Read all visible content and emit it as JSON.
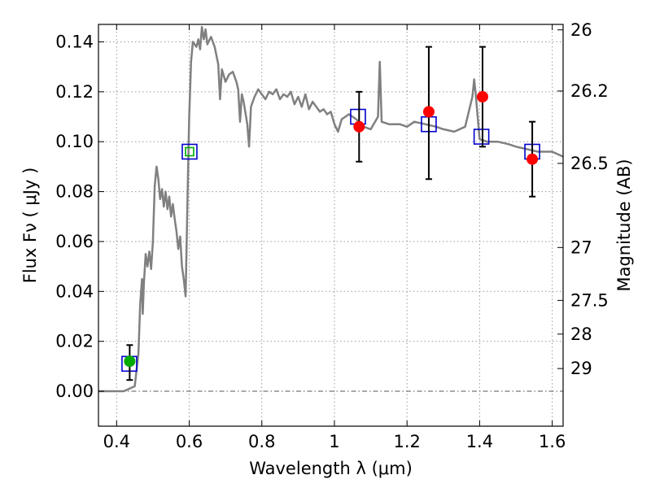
{
  "chart_data": {
    "type": "scatter",
    "xlabel": "Wavelength  λ (μm)",
    "ylabel": "Flux  Fν  ( μJy )",
    "ylabel_right": "Magnitude (AB)",
    "xlim": [
      0.35,
      1.63
    ],
    "ylim": [
      -0.014,
      0.147
    ],
    "grid": true,
    "x_ticks": [
      {
        "value": 0.4,
        "label": "0.4"
      },
      {
        "value": 0.6,
        "label": "0.6"
      },
      {
        "value": 0.8,
        "label": "0.8"
      },
      {
        "value": 1.0,
        "label": "1"
      },
      {
        "value": 1.2,
        "label": "1.2"
      },
      {
        "value": 1.4,
        "label": "1.4"
      },
      {
        "value": 1.6,
        "label": "1.6"
      }
    ],
    "y_ticks": [
      {
        "value": 0.0,
        "label": "0.00"
      },
      {
        "value": 0.02,
        "label": "0.02"
      },
      {
        "value": 0.04,
        "label": "0.04"
      },
      {
        "value": 0.06,
        "label": "0.06"
      },
      {
        "value": 0.08,
        "label": "0.08"
      },
      {
        "value": 0.1,
        "label": "0.10"
      },
      {
        "value": 0.12,
        "label": "0.12"
      },
      {
        "value": 0.14,
        "label": "0.14"
      }
    ],
    "right_ticks": [
      {
        "flux": 0.1448,
        "label": "26"
      },
      {
        "flux": 0.1203,
        "label": "26.2"
      },
      {
        "flux": 0.0913,
        "label": "26.5"
      },
      {
        "flux": 0.0576,
        "label": "27"
      },
      {
        "flux": 0.0364,
        "label": "27.5"
      },
      {
        "flux": 0.0229,
        "label": "28"
      },
      {
        "flux": 0.0091,
        "label": "29"
      }
    ],
    "series": [
      {
        "kind": "model-sed",
        "color": "#808080",
        "points": [
          [
            0.35,
            0.0
          ],
          [
            0.42,
            0.0
          ],
          [
            0.45,
            0.002
          ],
          [
            0.46,
            0.015
          ],
          [
            0.465,
            0.035
          ],
          [
            0.47,
            0.045
          ],
          [
            0.472,
            0.031
          ],
          [
            0.475,
            0.043
          ],
          [
            0.48,
            0.055
          ],
          [
            0.485,
            0.05
          ],
          [
            0.49,
            0.056
          ],
          [
            0.495,
            0.049
          ],
          [
            0.5,
            0.06
          ],
          [
            0.505,
            0.082
          ],
          [
            0.51,
            0.09
          ],
          [
            0.515,
            0.085
          ],
          [
            0.52,
            0.077
          ],
          [
            0.525,
            0.081
          ],
          [
            0.53,
            0.074
          ],
          [
            0.535,
            0.08
          ],
          [
            0.54,
            0.073
          ],
          [
            0.545,
            0.078
          ],
          [
            0.55,
            0.07
          ],
          [
            0.555,
            0.075
          ],
          [
            0.56,
            0.069
          ],
          [
            0.565,
            0.064
          ],
          [
            0.57,
            0.057
          ],
          [
            0.575,
            0.062
          ],
          [
            0.58,
            0.05
          ],
          [
            0.585,
            0.045
          ],
          [
            0.59,
            0.038
          ],
          [
            0.595,
            0.075
          ],
          [
            0.6,
            0.11
          ],
          [
            0.605,
            0.132
          ],
          [
            0.61,
            0.14
          ],
          [
            0.62,
            0.138
          ],
          [
            0.625,
            0.141
          ],
          [
            0.63,
            0.137
          ],
          [
            0.635,
            0.146
          ],
          [
            0.64,
            0.141
          ],
          [
            0.645,
            0.145
          ],
          [
            0.65,
            0.139
          ],
          [
            0.66,
            0.142
          ],
          [
            0.67,
            0.138
          ],
          [
            0.68,
            0.131
          ],
          [
            0.685,
            0.117
          ],
          [
            0.69,
            0.129
          ],
          [
            0.7,
            0.124
          ],
          [
            0.71,
            0.127
          ],
          [
            0.72,
            0.128
          ],
          [
            0.73,
            0.124
          ],
          [
            0.735,
            0.121
          ],
          [
            0.74,
            0.108
          ],
          [
            0.745,
            0.119
          ],
          [
            0.75,
            0.116
          ],
          [
            0.76,
            0.107
          ],
          [
            0.765,
            0.098
          ],
          [
            0.77,
            0.114
          ],
          [
            0.78,
            0.118
          ],
          [
            0.79,
            0.121
          ],
          [
            0.8,
            0.119
          ],
          [
            0.81,
            0.117
          ],
          [
            0.82,
            0.12
          ],
          [
            0.83,
            0.119
          ],
          [
            0.84,
            0.121
          ],
          [
            0.85,
            0.117
          ],
          [
            0.86,
            0.119
          ],
          [
            0.87,
            0.118
          ],
          [
            0.88,
            0.12
          ],
          [
            0.89,
            0.115
          ],
          [
            0.9,
            0.118
          ],
          [
            0.91,
            0.114
          ],
          [
            0.92,
            0.119
          ],
          [
            0.93,
            0.113
          ],
          [
            0.94,
            0.116
          ],
          [
            0.95,
            0.114
          ],
          [
            0.96,
            0.112
          ],
          [
            0.97,
            0.113
          ],
          [
            0.98,
            0.111
          ],
          [
            0.99,
            0.112
          ],
          [
            1.0,
            0.107
          ],
          [
            1.01,
            0.104
          ],
          [
            1.02,
            0.109
          ],
          [
            1.04,
            0.111
          ],
          [
            1.06,
            0.109
          ],
          [
            1.08,
            0.106
          ],
          [
            1.1,
            0.105
          ],
          [
            1.12,
            0.11
          ],
          [
            1.125,
            0.132
          ],
          [
            1.13,
            0.108
          ],
          [
            1.15,
            0.107
          ],
          [
            1.18,
            0.107
          ],
          [
            1.2,
            0.106
          ],
          [
            1.22,
            0.108
          ],
          [
            1.25,
            0.107
          ],
          [
            1.28,
            0.106
          ],
          [
            1.3,
            0.105
          ],
          [
            1.33,
            0.104
          ],
          [
            1.36,
            0.106
          ],
          [
            1.38,
            0.118
          ],
          [
            1.385,
            0.125
          ],
          [
            1.39,
            0.118
          ],
          [
            1.4,
            0.101
          ],
          [
            1.42,
            0.1
          ],
          [
            1.45,
            0.1
          ],
          [
            1.48,
            0.099
          ],
          [
            1.5,
            0.098
          ],
          [
            1.53,
            0.097
          ],
          [
            1.56,
            0.096
          ],
          [
            1.6,
            0.096
          ],
          [
            1.63,
            0.094
          ]
        ]
      },
      {
        "kind": "model-photometry",
        "marker": "open-square",
        "color": "#0000cc",
        "points": [
          [
            0.435,
            0.011
          ],
          [
            0.601,
            0.096
          ],
          [
            1.065,
            0.11
          ],
          [
            1.26,
            0.107
          ],
          [
            1.405,
            0.102
          ],
          [
            1.545,
            0.096
          ]
        ]
      },
      {
        "kind": "measured",
        "marker": "filled-circle",
        "color": "#ff0000",
        "error_bar_color": "#000000",
        "points": [
          {
            "x": 1.068,
            "y": 0.106,
            "lo": 0.092,
            "hi": 0.12
          },
          {
            "x": 1.26,
            "y": 0.112,
            "lo": 0.085,
            "hi": 0.138
          },
          {
            "x": 1.408,
            "y": 0.118,
            "lo": 0.098,
            "hi": 0.138
          },
          {
            "x": 1.545,
            "y": 0.093,
            "lo": 0.078,
            "hi": 0.108
          }
        ]
      },
      {
        "kind": "measured",
        "marker": "filled-circle",
        "color": "#00aa00",
        "error_bar_color": "#000000",
        "points": [
          {
            "x": 0.436,
            "y": 0.012,
            "lo": 0.0045,
            "hi": 0.0185
          }
        ]
      },
      {
        "kind": "measured",
        "marker": "small-open-square",
        "color": "#00aa00",
        "points": [
          {
            "x": 0.601,
            "y": 0.096
          }
        ]
      }
    ]
  }
}
